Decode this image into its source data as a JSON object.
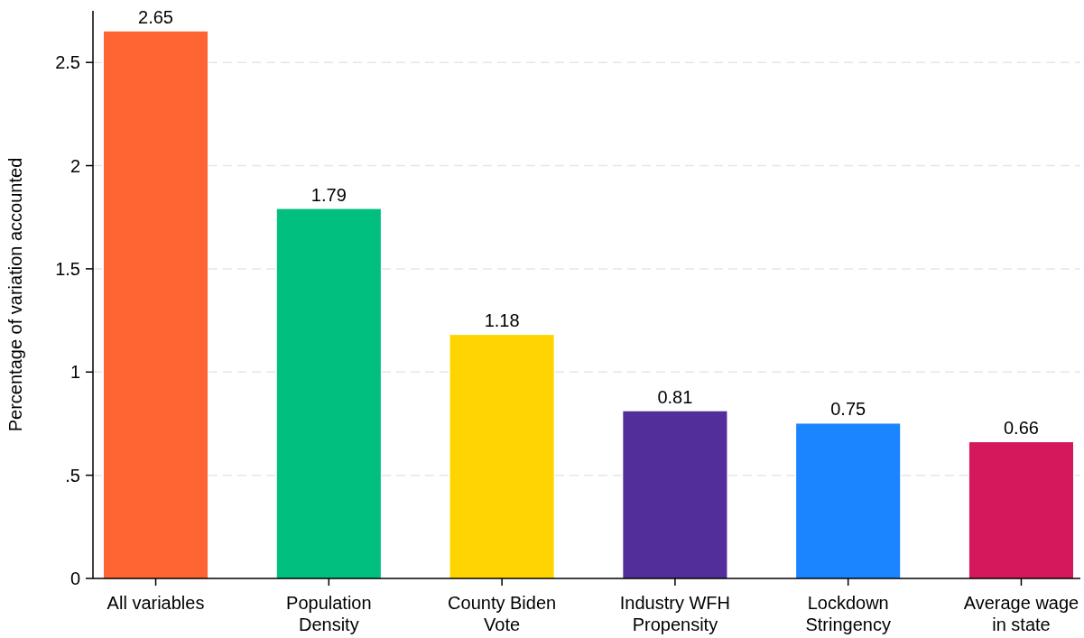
{
  "chart_data": {
    "type": "bar",
    "ylabel": "Percentage of variation accounted",
    "categories": [
      "All variables",
      "Population\nDensity",
      "County Biden\nVote",
      "Industry WFH\nPropensity",
      "Lockdown\nStringency",
      "Average wage\nin state"
    ],
    "values": [
      2.65,
      1.79,
      1.18,
      0.81,
      0.75,
      0.66
    ],
    "colors": [
      "#ff6433",
      "#00bf7f",
      "#ffd400",
      "#512e99",
      "#1a85ff",
      "#d5175b"
    ],
    "ylim": [
      0,
      2.75
    ],
    "yticks": [
      0,
      {
        "value": 0.5,
        "label": ".5"
      },
      1,
      1.5,
      2,
      2.5
    ],
    "grid": "y",
    "data_labels": true
  }
}
